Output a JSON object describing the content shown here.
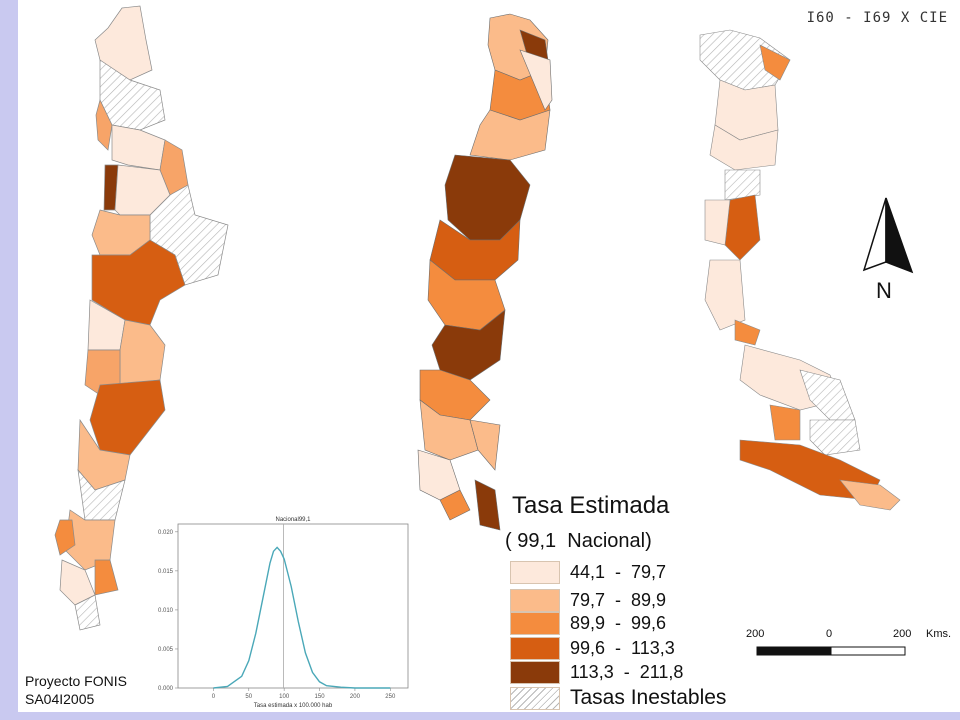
{
  "code_label": "I60 - I69 X CIE",
  "north": {
    "label": "N"
  },
  "legend": {
    "title": "Tasa Estimada",
    "national": "( 99,1  Nacional)",
    "items": [
      {
        "range": "44,1  -  79,7",
        "color": "#fde9dc"
      },
      {
        "range": "79,7  -  89,9",
        "color": "#fbbb8a"
      },
      {
        "range": "89,9  -  99,6",
        "color": "#f48c3e"
      },
      {
        "range": "99,6  -  113,3",
        "color": "#d65e12"
      },
      {
        "range": "113,3  -  211,8",
        "color": "#8a3a0a"
      },
      {
        "range": "Tasas Inestables",
        "color": "hatch"
      }
    ]
  },
  "scale": {
    "left": "200",
    "center": "0",
    "right": "200",
    "unit": "Kms."
  },
  "project": {
    "line1": "Proyecto FONIS",
    "line2": "SA04I2005"
  },
  "chart_data": {
    "type": "line",
    "title": "Nacional99,1",
    "xlabel": "Tasa estimada x 100.000 hab",
    "ylabel": "",
    "xlim": [
      -50,
      275
    ],
    "ylim": [
      0,
      0.021
    ],
    "xticks": [
      0,
      50,
      100,
      150,
      200,
      250
    ],
    "yticks": [
      0.0,
      0.005,
      0.01,
      0.015,
      0.02
    ],
    "ytick_labels": [
      "0.000",
      "0.005",
      "0.010",
      "0.015",
      "0.020"
    ],
    "reference_line_x": 99.1,
    "series": [
      {
        "x": [
          0,
          20,
          40,
          50,
          60,
          70,
          80,
          85,
          90,
          95,
          100,
          110,
          120,
          130,
          140,
          150,
          160,
          180,
          200,
          250
        ],
        "y": [
          0.0,
          0.0002,
          0.0015,
          0.0035,
          0.007,
          0.0115,
          0.016,
          0.0175,
          0.018,
          0.0175,
          0.0165,
          0.013,
          0.0085,
          0.0045,
          0.002,
          0.0008,
          0.0003,
          0.0001,
          0.0,
          0.0
        ],
        "color": "#4aa8b8"
      }
    ]
  }
}
